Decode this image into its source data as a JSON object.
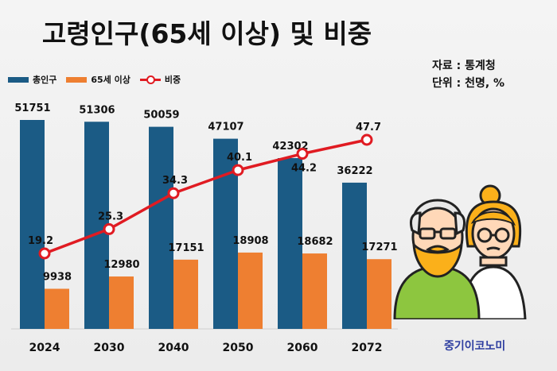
{
  "title": "고령인구(65세 이상) 및 비중",
  "source": "자료 : 통계청",
  "unit": "단위 : 천명, %",
  "brand": "중기이코노미",
  "colors": {
    "total": "#1b5b85",
    "elderly": "#ee7f31",
    "ratio": "#e01b22"
  },
  "chart_data": {
    "type": "bar",
    "categories": [
      "2024",
      "2030",
      "2040",
      "2050",
      "2060",
      "2072"
    ],
    "series": [
      {
        "name": "총인구",
        "type": "bar",
        "values": [
          51751,
          51306,
          50059,
          47107,
          42302,
          36222
        ]
      },
      {
        "name": "65세 이상",
        "type": "bar",
        "values": [
          9938,
          12980,
          17151,
          18908,
          18682,
          17271
        ]
      },
      {
        "name": "비중",
        "type": "line",
        "values": [
          19.2,
          25.3,
          34.3,
          40.1,
          44.2,
          47.7
        ]
      }
    ],
    "title": "고령인구(65세 이상) 및 비중",
    "xlabel": "",
    "ylabel": "",
    "ylim": [
      0,
      55000
    ],
    "y2lim": [
      0,
      60
    ],
    "grid": false,
    "legend": "top-left"
  }
}
